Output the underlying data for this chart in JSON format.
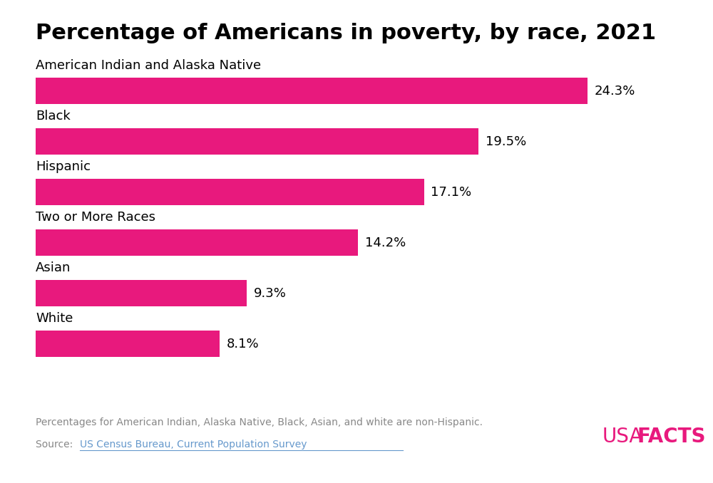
{
  "title": "Percentage of Americans in poverty, by race, 2021",
  "categories": [
    "American Indian and Alaska Native",
    "Black",
    "Hispanic",
    "Two or More Races",
    "Asian",
    "White"
  ],
  "values": [
    24.3,
    19.5,
    17.1,
    14.2,
    9.3,
    8.1
  ],
  "labels": [
    "24.3%",
    "19.5%",
    "17.1%",
    "14.2%",
    "9.3%",
    "8.1%"
  ],
  "bar_color": "#E8197D",
  "background_color": "#ffffff",
  "title_fontsize": 22,
  "label_fontsize": 13,
  "category_fontsize": 13,
  "footnote": "Percentages for American Indian, Alaska Native, Black, Asian, and white are non-Hispanic.",
  "source_text": "Source: ",
  "source_link": "US Census Bureau, Current Population Survey",
  "usafacts_color": "#E8197D",
  "footnote_color": "#888888",
  "source_link_color": "#6699cc",
  "xlim": [
    0,
    27
  ]
}
